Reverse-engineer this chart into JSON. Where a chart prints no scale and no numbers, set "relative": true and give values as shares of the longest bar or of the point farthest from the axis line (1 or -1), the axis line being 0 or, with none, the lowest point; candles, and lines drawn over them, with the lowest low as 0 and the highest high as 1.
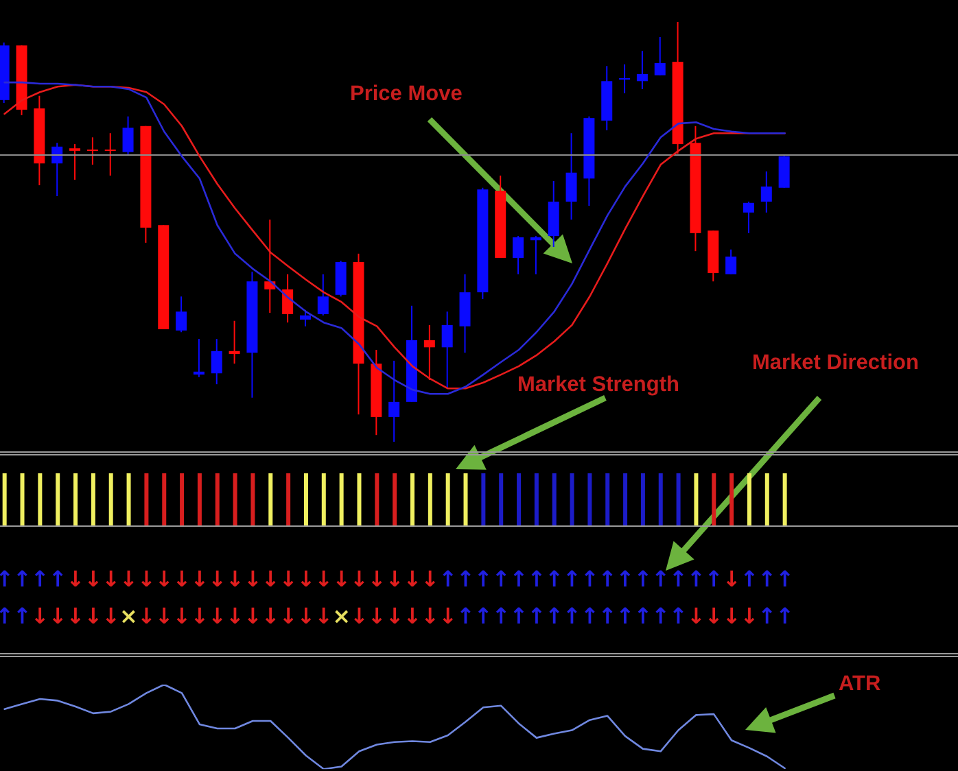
{
  "chart_data": [
    {
      "type": "candlestick",
      "relative": true,
      "categories": [
        null,
        null,
        null,
        null,
        null,
        null,
        null,
        null,
        null,
        null,
        null,
        null,
        null,
        null,
        null,
        null,
        null,
        null,
        null,
        null,
        null,
        null,
        null,
        null,
        null,
        null,
        null,
        null,
        null,
        null,
        null,
        null,
        null,
        null,
        null,
        null,
        null,
        null,
        null,
        null,
        null,
        null,
        null,
        null,
        null
      ],
      "ohlc": [
        [
          0.814,
          0.951,
          0.807,
          0.944
        ],
        [
          0.944,
          0.944,
          0.778,
          0.791
        ],
        [
          0.794,
          0.824,
          0.611,
          0.663
        ],
        [
          0.663,
          0.712,
          0.585,
          0.703
        ],
        [
          0.699,
          0.709,
          0.624,
          0.693
        ],
        [
          0.696,
          0.725,
          0.66,
          0.693
        ],
        [
          0.696,
          0.735,
          0.634,
          0.693
        ],
        [
          0.69,
          0.775,
          0.683,
          0.748
        ],
        [
          0.752,
          0.752,
          0.474,
          0.51
        ],
        [
          0.516,
          0.516,
          0.268,
          0.268
        ],
        [
          0.265,
          0.346,
          0.261,
          0.31
        ],
        [
          0.16,
          0.245,
          0.154,
          0.167
        ],
        [
          0.163,
          0.245,
          0.137,
          0.216
        ],
        [
          0.216,
          0.288,
          0.186,
          0.209
        ],
        [
          0.212,
          0.405,
          0.105,
          0.382
        ],
        [
          0.382,
          0.529,
          0.307,
          0.363
        ],
        [
          0.363,
          0.399,
          0.284,
          0.304
        ],
        [
          0.291,
          0.314,
          0.275,
          0.301
        ],
        [
          0.304,
          0.399,
          0.301,
          0.346
        ],
        [
          0.35,
          0.431,
          0.346,
          0.428
        ],
        [
          0.428,
          0.448,
          0.065,
          0.186
        ],
        [
          0.186,
          0.219,
          0.016,
          0.059
        ],
        [
          0.059,
          0.193,
          0,
          0.095
        ],
        [
          0.095,
          0.324,
          0.095,
          0.242
        ],
        [
          0.242,
          0.278,
          0.147,
          0.225
        ],
        [
          0.225,
          0.31,
          0.127,
          0.278
        ],
        [
          0.275,
          0.399,
          0.212,
          0.356
        ],
        [
          0.356,
          0.605,
          0.34,
          0.601
        ],
        [
          0.598,
          0.634,
          0.438,
          0.438
        ],
        [
          0.438,
          0.49,
          0.399,
          0.487
        ],
        [
          0.48,
          0.49,
          0.399,
          0.487
        ],
        [
          0.49,
          0.621,
          0.464,
          0.572
        ],
        [
          0.572,
          0.735,
          0.529,
          0.641
        ],
        [
          0.627,
          0.775,
          0.562,
          0.771
        ],
        [
          0.765,
          0.895,
          0.742,
          0.859
        ],
        [
          0.863,
          0.899,
          0.83,
          0.866
        ],
        [
          0.859,
          0.931,
          0.84,
          0.876
        ],
        [
          0.873,
          0.964,
          0.873,
          0.902
        ],
        [
          0.905,
          1,
          0.686,
          0.709
        ],
        [
          0.712,
          0.752,
          0.454,
          0.497
        ],
        [
          0.503,
          0.503,
          0.382,
          0.402
        ],
        [
          0.399,
          0.458,
          0.399,
          0.441
        ],
        [
          0.546,
          0.572,
          0.497,
          0.569
        ],
        [
          0.572,
          0.644,
          0.546,
          0.608
        ],
        [
          0.605,
          0.683,
          0.605,
          0.68
        ]
      ],
      "colors": [
        "#0a0aff",
        "#ff0a0a",
        "#ff0a0a",
        "#0a0aff",
        "#ff0a0a",
        "#ff0a0a",
        "#ff0a0a",
        "#0a0aff",
        "#ff0a0a",
        "#ff0a0a",
        "#0a0aff",
        "#0a0aff",
        "#0a0aff",
        "#ff0a0a",
        "#0a0aff",
        "#ff0a0a",
        "#ff0a0a",
        "#0a0aff",
        "#0a0aff",
        "#0a0aff",
        "#ff0a0a",
        "#ff0a0a",
        "#0a0aff",
        "#0a0aff",
        "#ff0a0a",
        "#0a0aff",
        "#0a0aff",
        "#0a0aff",
        "#ff0a0a",
        "#0a0aff",
        "#0a0aff",
        "#0a0aff",
        "#0a0aff",
        "#0a0aff",
        "#0a0aff",
        "#0a0aff",
        "#0a0aff",
        "#0a0aff",
        "#ff0a0a",
        "#ff0a0a",
        "#ff0a0a",
        "#0a0aff",
        "#0a0aff",
        "#0a0aff",
        "#0a0aff"
      ],
      "series": [
        {
          "type": "line",
          "color": "#e81c1c",
          "values": [
            0.781,
            0.814,
            0.833,
            0.846,
            0.85,
            0.846,
            0.846,
            0.843,
            0.833,
            0.804,
            0.752,
            0.68,
            0.614,
            0.556,
            0.503,
            0.451,
            0.418,
            0.386,
            0.356,
            0.333,
            0.297,
            0.275,
            0.225,
            0.18,
            0.15,
            0.127,
            0.127,
            0.141,
            0.16,
            0.18,
            0.206,
            0.239,
            0.278,
            0.346,
            0.425,
            0.507,
            0.585,
            0.66,
            0.693,
            0.722,
            0.735,
            0.735,
            0.735,
            0.735,
            0.735
          ]
        },
        {
          "type": "line",
          "color": "#2a2ad8",
          "values": [
            0.856,
            0.856,
            0.853,
            0.853,
            0.85,
            0.846,
            0.846,
            0.84,
            0.82,
            0.739,
            0.68,
            0.627,
            0.516,
            0.448,
            0.412,
            0.382,
            0.343,
            0.31,
            0.284,
            0.271,
            0.232,
            0.176,
            0.147,
            0.124,
            0.114,
            0.114,
            0.131,
            0.16,
            0.19,
            0.219,
            0.261,
            0.31,
            0.376,
            0.458,
            0.539,
            0.608,
            0.663,
            0.725,
            0.758,
            0.761,
            0.745,
            0.739,
            0.735,
            0.735,
            0.735
          ]
        }
      ],
      "ref_lines": [
        {
          "axis": "y",
          "value": 0.683,
          "color": "#8c8c8c"
        }
      ],
      "annotations": [
        "Price Move",
        "Market Strength",
        "Market Direction"
      ]
    },
    {
      "type": "bar",
      "relative": true,
      "categories": [
        null,
        null,
        null,
        null,
        null,
        null,
        null,
        null,
        null,
        null,
        null,
        null,
        null,
        null,
        null,
        null,
        null,
        null,
        null,
        null,
        null,
        null,
        null,
        null,
        null,
        null,
        null,
        null,
        null,
        null,
        null,
        null,
        null,
        null,
        null,
        null,
        null,
        null,
        null,
        null,
        null,
        null,
        null,
        null,
        null
      ],
      "values": [
        1,
        1,
        1,
        1,
        1,
        1,
        1,
        1,
        1,
        1,
        1,
        1,
        1,
        1,
        1,
        1,
        1,
        1,
        1,
        1,
        1,
        1,
        1,
        1,
        1,
        1,
        1,
        1,
        1,
        1,
        1,
        1,
        1,
        1,
        1,
        1,
        1,
        1,
        1,
        1,
        1,
        1,
        1,
        1,
        1
      ],
      "colors": [
        "#f0f060",
        "#f0f060",
        "#f0f060",
        "#f0f060",
        "#f0f060",
        "#f0f060",
        "#f0f060",
        "#f0f060",
        "#d81e1e",
        "#d81e1e",
        "#d81e1e",
        "#d81e1e",
        "#d81e1e",
        "#d81e1e",
        "#d81e1e",
        "#f0f060",
        "#d81e1e",
        "#f0f060",
        "#f0f060",
        "#f0f060",
        "#f0f060",
        "#d81e1e",
        "#d81e1e",
        "#f0f060",
        "#f0f060",
        "#f0f060",
        "#f0f060",
        "#1c1cc8",
        "#1c1cc8",
        "#1c1cc8",
        "#1c1cc8",
        "#1c1cc8",
        "#1c1cc8",
        "#1c1cc8",
        "#1c1cc8",
        "#1c1cc8",
        "#1c1cc8",
        "#1c1cc8",
        "#1c1cc8",
        "#f0f060",
        "#d81e1e",
        "#d81e1e",
        "#f0f060",
        "#f0f060",
        "#f0f060"
      ]
    },
    {
      "type": "other",
      "cell_labels": [
        [
          "↑",
          "↑",
          "↑",
          "↑",
          "↓",
          "↓",
          "↓",
          "↓",
          "↓",
          "↓",
          "↓",
          "↓",
          "↓",
          "↓",
          "↓",
          "↓",
          "↓",
          "↓",
          "↓",
          "↓",
          "↓",
          "↓",
          "↓",
          "↓",
          "↓",
          "↑",
          "↑",
          "↑",
          "↑",
          "↑",
          "↑",
          "↑",
          "↑",
          "↑",
          "↑",
          "↑",
          "↑",
          "↑",
          "↑",
          "↑",
          "↑",
          "↓",
          "↑",
          "↑",
          "↑"
        ],
        [
          "↑",
          "↑",
          "↓",
          "↓",
          "↓",
          "↓",
          "↓",
          "×",
          "↓",
          "↓",
          "↓",
          "↓",
          "↓",
          "↓",
          "↓",
          "↓",
          "↓",
          "↓",
          "↓",
          "×",
          "↓",
          "↓",
          "↓",
          "↓",
          "↓",
          "↓",
          "↑",
          "↑",
          "↑",
          "↑",
          "↑",
          "↑",
          "↑",
          "↑",
          "↑",
          "↑",
          "↑",
          "↑",
          "↑",
          "↓",
          "↓",
          "↓",
          "↓",
          "↑",
          "↑"
        ]
      ],
      "colors": [
        [
          "#2020e0",
          "#2020e0",
          "#2020e0",
          "#2020e0",
          "#e01e1e",
          "#e01e1e",
          "#e01e1e",
          "#e01e1e",
          "#e01e1e",
          "#e01e1e",
          "#e01e1e",
          "#e01e1e",
          "#e01e1e",
          "#e01e1e",
          "#e01e1e",
          "#e01e1e",
          "#e01e1e",
          "#e01e1e",
          "#e01e1e",
          "#e01e1e",
          "#e01e1e",
          "#e01e1e",
          "#e01e1e",
          "#e01e1e",
          "#e01e1e",
          "#2020e0",
          "#2020e0",
          "#2020e0",
          "#2020e0",
          "#2020e0",
          "#2020e0",
          "#2020e0",
          "#2020e0",
          "#2020e0",
          "#2020e0",
          "#2020e0",
          "#2020e0",
          "#2020e0",
          "#2020e0",
          "#2020e0",
          "#2020e0",
          "#e01e1e",
          "#2020e0",
          "#2020e0",
          "#2020e0"
        ],
        [
          "#2020e0",
          "#2020e0",
          "#e01e1e",
          "#e01e1e",
          "#e01e1e",
          "#e01e1e",
          "#e01e1e",
          "#e8e060",
          "#e01e1e",
          "#e01e1e",
          "#e01e1e",
          "#e01e1e",
          "#e01e1e",
          "#e01e1e",
          "#e01e1e",
          "#e01e1e",
          "#e01e1e",
          "#e01e1e",
          "#e01e1e",
          "#e8e060",
          "#e01e1e",
          "#e01e1e",
          "#e01e1e",
          "#e01e1e",
          "#e01e1e",
          "#e01e1e",
          "#2020e0",
          "#2020e0",
          "#2020e0",
          "#2020e0",
          "#2020e0",
          "#2020e0",
          "#2020e0",
          "#2020e0",
          "#2020e0",
          "#2020e0",
          "#2020e0",
          "#2020e0",
          "#2020e0",
          "#e01e1e",
          "#e01e1e",
          "#e01e1e",
          "#e01e1e",
          "#2020e0",
          "#2020e0"
        ]
      ]
    },
    {
      "type": "line",
      "relative": true,
      "color": "#7088e0",
      "categories": [
        null,
        null,
        null,
        null,
        null,
        null,
        null,
        null,
        null,
        null,
        null,
        null,
        null,
        null,
        null,
        null,
        null,
        null,
        null,
        null,
        null,
        null,
        null,
        null,
        null,
        null,
        null,
        null,
        null,
        null,
        null,
        null,
        null,
        null,
        null,
        null,
        null,
        null,
        null,
        null,
        null,
        null,
        null,
        null,
        null
      ],
      "values": [
        0.71,
        0.77,
        0.83,
        0.81,
        0.74,
        0.66,
        0.68,
        0.77,
        0.9,
        1,
        0.9,
        0.53,
        0.48,
        0.48,
        0.57,
        0.57,
        0.37,
        0.16,
        0,
        0.03,
        0.21,
        0.29,
        0.32,
        0.33,
        0.32,
        0.4,
        0.56,
        0.73,
        0.75,
        0.54,
        0.37,
        0.42,
        0.46,
        0.58,
        0.63,
        0.39,
        0.24,
        0.21,
        0.46,
        0.64,
        0.65,
        0.34,
        0.25,
        0.15,
        0.01
      ],
      "annotations": [
        "ATR"
      ]
    }
  ]
}
